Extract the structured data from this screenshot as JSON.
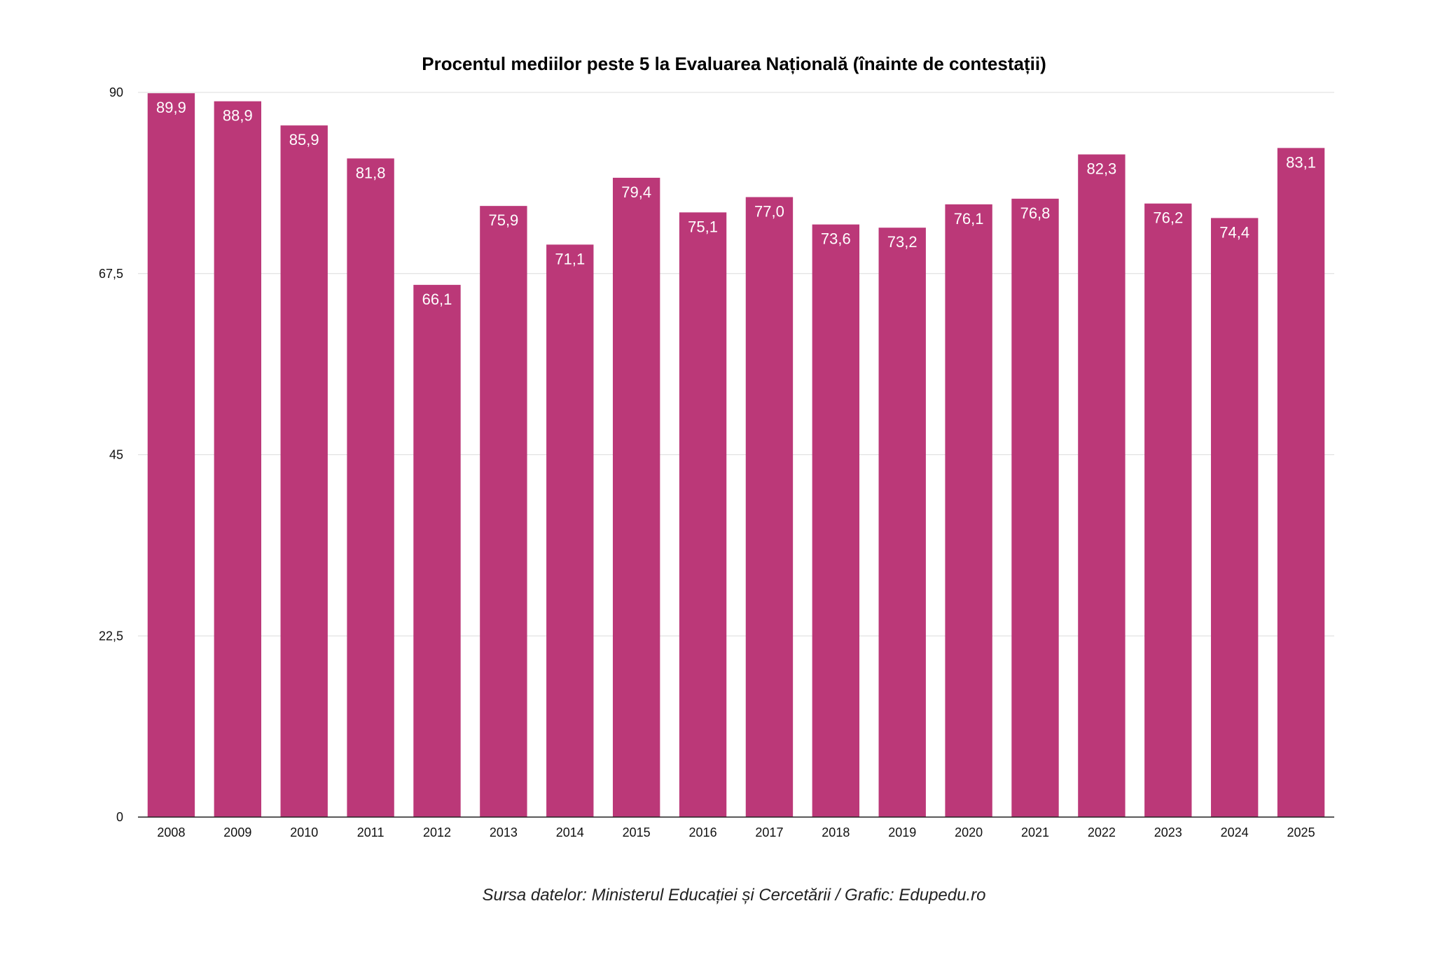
{
  "chart_data": {
    "type": "bar",
    "title": "Procentul mediilor peste 5 la Evaluarea Națională (înainte de contestații)",
    "xlabel": "",
    "ylabel": "",
    "categories": [
      "2008",
      "2009",
      "2010",
      "2011",
      "2012",
      "2013",
      "2014",
      "2015",
      "2016",
      "2017",
      "2018",
      "2019",
      "2020",
      "2021",
      "2022",
      "2023",
      "2024",
      "2025"
    ],
    "values": [
      89.9,
      88.9,
      85.9,
      81.8,
      66.1,
      75.9,
      71.1,
      79.4,
      75.1,
      77.0,
      73.6,
      73.2,
      76.1,
      76.8,
      82.3,
      76.2,
      74.4,
      83.1
    ],
    "value_labels": [
      "89,9",
      "88,9",
      "85,9",
      "81,8",
      "66,1",
      "75,9",
      "71,1",
      "79,4",
      "75,1",
      "77,0",
      "73,6",
      "73,2",
      "76,1",
      "76,8",
      "82,3",
      "76,2",
      "74,4",
      "83,1"
    ],
    "ylim": [
      0,
      90
    ],
    "yticks": [
      0,
      22.5,
      45,
      67.5,
      90
    ],
    "ytick_labels": [
      "0",
      "22,5",
      "45",
      "67,5",
      "90"
    ],
    "grid": true,
    "legend": "none",
    "bar_color": "#bb3878",
    "source": "Sursa datelor: Ministerul Educației și Cercetării / Grafic: Edupedu.ro"
  }
}
